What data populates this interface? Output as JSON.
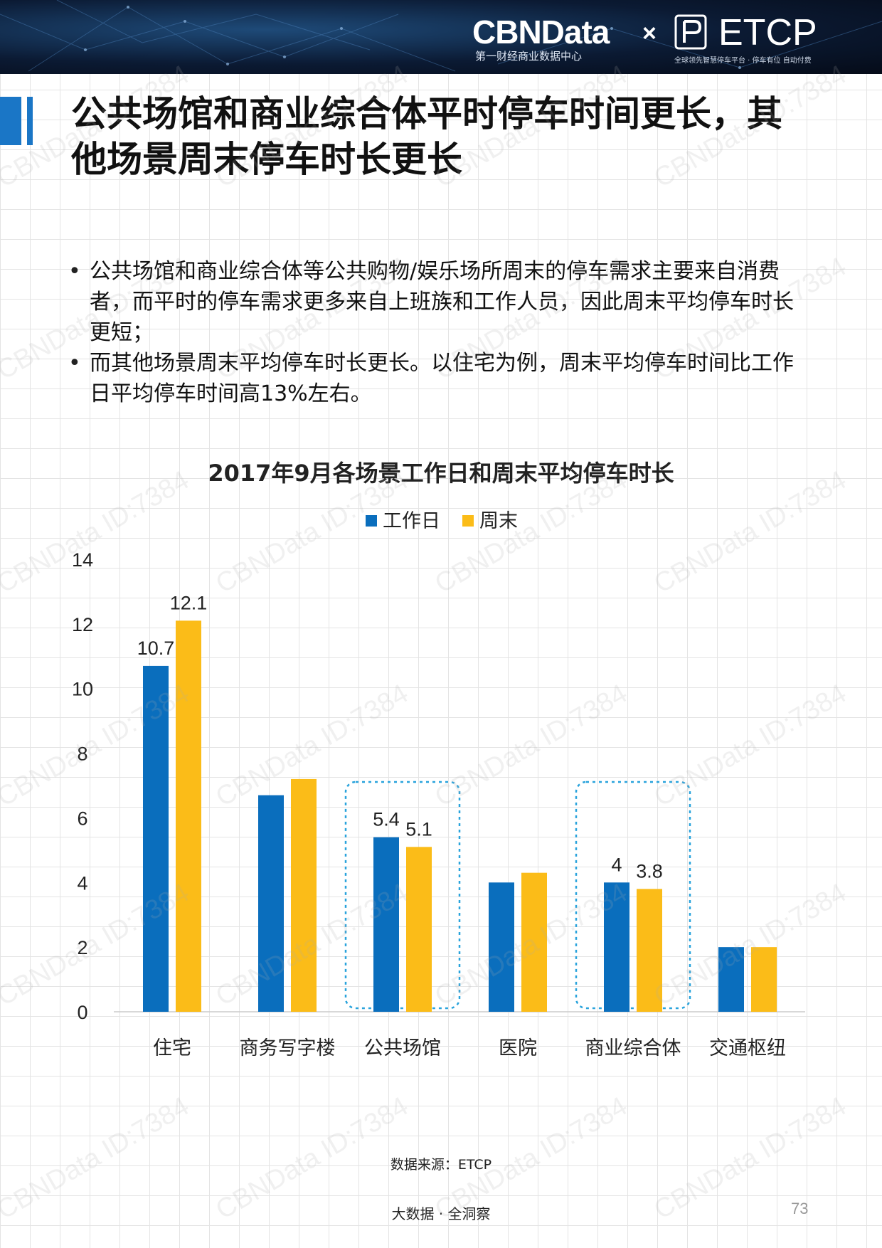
{
  "header": {
    "brand": "CBNData",
    "brand_sub": "第一财经商业数据中心",
    "separator": "×",
    "partner": "ETCP",
    "partner_sub": "全球领先智慧停车平台 · 停车有位 自动付费",
    "colors": {
      "banner": "#0b1a33",
      "accent": "#1a76c6"
    }
  },
  "title": "公共场馆和商业综合体平时停车时间更长，其他场景周末停车时长更长",
  "bullets": [
    "公共场馆和商业综合体等公共购物/娱乐场所周末的停车需求主要来自消费者，而平时的停车需求更多来自上班族和工作人员，因此周末平均停车时长更短；",
    "而其他场景周末平均停车时长更长。以住宅为例，周末平均停车时间比工作日平均停车时间高13%左右。"
  ],
  "chart_data": {
    "type": "bar",
    "title": "2017年9月各场景工作日和周末平均停车时长",
    "categories": [
      "住宅",
      "商务写字楼",
      "公共场馆",
      "医院",
      "商业综合体",
      "交通枢纽"
    ],
    "series": [
      {
        "name": "工作日",
        "color": "#0a6ebd",
        "values": [
          10.7,
          6.7,
          5.4,
          4.0,
          4.0,
          2.0
        ]
      },
      {
        "name": "周末",
        "color": "#fbbc18",
        "values": [
          12.1,
          7.2,
          5.1,
          4.3,
          3.8,
          2.0
        ]
      }
    ],
    "data_labels": [
      {
        "category_index": 0,
        "series_index": 0,
        "text": "10.7"
      },
      {
        "category_index": 0,
        "series_index": 1,
        "text": "12.1"
      },
      {
        "category_index": 2,
        "series_index": 0,
        "text": "5.4"
      },
      {
        "category_index": 2,
        "series_index": 1,
        "text": "5.1"
      },
      {
        "category_index": 4,
        "series_index": 0,
        "text": "4"
      },
      {
        "category_index": 4,
        "series_index": 1,
        "text": "3.8"
      }
    ],
    "highlighted_categories": [
      2,
      4
    ],
    "y_ticks": [
      "0",
      "2",
      "4",
      "6",
      "8",
      "10",
      "12",
      "14"
    ],
    "ylim": [
      0,
      14
    ],
    "legend_position": "top-center",
    "grid": false
  },
  "footer": {
    "source": "数据来源：ETCP",
    "tagline": "大数据 · 全洞察",
    "page_number": "73"
  },
  "watermark": "CBNData ID:7384"
}
